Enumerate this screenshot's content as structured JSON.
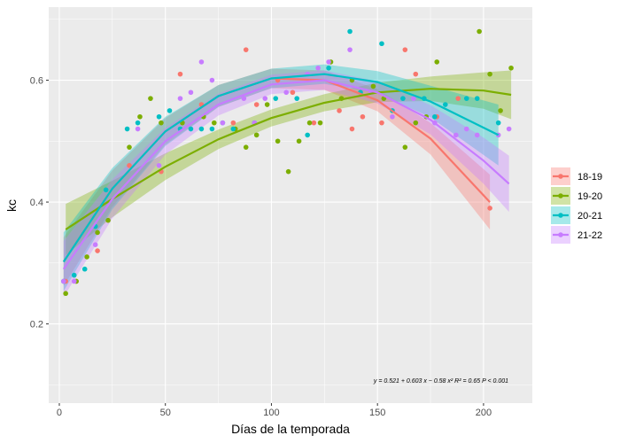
{
  "chart_data": {
    "type": "scatter",
    "title": "",
    "xlabel": "Días de la temporada",
    "ylabel": "kc",
    "xlim": [
      -5,
      223
    ],
    "ylim": [
      0.07,
      0.72
    ],
    "x_ticks": [
      0,
      50,
      100,
      150,
      200
    ],
    "y_ticks": [
      0.2,
      0.4,
      0.6
    ],
    "grid": true,
    "legend_position": "right",
    "annotation": "y = 0.521 + 0.603 x − 0.58 x²   R² = 0.65   P < 0.001",
    "series": [
      {
        "name": "18-19",
        "color": "#F8766D",
        "points": [
          [
            3,
            0.27
          ],
          [
            8,
            0.27
          ],
          [
            18,
            0.32
          ],
          [
            33,
            0.46
          ],
          [
            48,
            0.45
          ],
          [
            57,
            0.61
          ],
          [
            67,
            0.56
          ],
          [
            82,
            0.53
          ],
          [
            88,
            0.65
          ],
          [
            93,
            0.56
          ],
          [
            103,
            0.6
          ],
          [
            110,
            0.58
          ],
          [
            120,
            0.53
          ],
          [
            132,
            0.55
          ],
          [
            138,
            0.52
          ],
          [
            143,
            0.54
          ],
          [
            152,
            0.53
          ],
          [
            163,
            0.65
          ],
          [
            168,
            0.61
          ],
          [
            178,
            0.54
          ],
          [
            188,
            0.57
          ],
          [
            203,
            0.39
          ]
        ],
        "fit": [
          [
            2,
            0.302
          ],
          [
            25,
            0.422
          ],
          [
            50,
            0.516
          ],
          [
            75,
            0.574
          ],
          [
            100,
            0.603
          ],
          [
            125,
            0.6
          ],
          [
            150,
            0.567
          ],
          [
            175,
            0.504
          ],
          [
            203,
            0.4
          ]
        ],
        "band": [
          0.04,
          0.03,
          0.022,
          0.018,
          0.016,
          0.016,
          0.018,
          0.026,
          0.045
        ]
      },
      {
        "name": "19-20",
        "color": "#7CAE00",
        "points": [
          [
            3,
            0.25
          ],
          [
            8,
            0.27
          ],
          [
            13,
            0.31
          ],
          [
            18,
            0.35
          ],
          [
            23,
            0.37
          ],
          [
            33,
            0.49
          ],
          [
            38,
            0.54
          ],
          [
            43,
            0.57
          ],
          [
            48,
            0.53
          ],
          [
            58,
            0.53
          ],
          [
            68,
            0.54
          ],
          [
            73,
            0.53
          ],
          [
            83,
            0.52
          ],
          [
            88,
            0.49
          ],
          [
            93,
            0.51
          ],
          [
            98,
            0.56
          ],
          [
            103,
            0.5
          ],
          [
            108,
            0.45
          ],
          [
            113,
            0.5
          ],
          [
            118,
            0.53
          ],
          [
            123,
            0.53
          ],
          [
            128,
            0.63
          ],
          [
            133,
            0.57
          ],
          [
            138,
            0.6
          ],
          [
            148,
            0.59
          ],
          [
            153,
            0.57
          ],
          [
            163,
            0.49
          ],
          [
            168,
            0.53
          ],
          [
            173,
            0.54
          ],
          [
            178,
            0.63
          ],
          [
            198,
            0.68
          ],
          [
            203,
            0.61
          ],
          [
            208,
            0.55
          ],
          [
            213,
            0.62
          ]
        ],
        "fit": [
          [
            3,
            0.355
          ],
          [
            25,
            0.405
          ],
          [
            50,
            0.458
          ],
          [
            75,
            0.503
          ],
          [
            100,
            0.538
          ],
          [
            125,
            0.563
          ],
          [
            150,
            0.58
          ],
          [
            175,
            0.586
          ],
          [
            200,
            0.583
          ],
          [
            213,
            0.576
          ]
        ],
        "band": [
          0.042,
          0.03,
          0.022,
          0.016,
          0.014,
          0.014,
          0.016,
          0.02,
          0.03,
          0.04
        ]
      },
      {
        "name": "20-21",
        "color": "#00BFC4",
        "points": [
          [
            2,
            0.27
          ],
          [
            7,
            0.28
          ],
          [
            12,
            0.29
          ],
          [
            17,
            0.36
          ],
          [
            22,
            0.42
          ],
          [
            32,
            0.52
          ],
          [
            37,
            0.53
          ],
          [
            47,
            0.54
          ],
          [
            52,
            0.55
          ],
          [
            57,
            0.52
          ],
          [
            62,
            0.52
          ],
          [
            67,
            0.52
          ],
          [
            72,
            0.52
          ],
          [
            77,
            0.53
          ],
          [
            82,
            0.52
          ],
          [
            92,
            0.53
          ],
          [
            102,
            0.57
          ],
          [
            112,
            0.57
          ],
          [
            117,
            0.51
          ],
          [
            127,
            0.62
          ],
          [
            137,
            0.68
          ],
          [
            142,
            0.58
          ],
          [
            152,
            0.66
          ],
          [
            157,
            0.55
          ],
          [
            162,
            0.57
          ],
          [
            172,
            0.57
          ],
          [
            177,
            0.54
          ],
          [
            182,
            0.56
          ],
          [
            192,
            0.57
          ],
          [
            197,
            0.57
          ],
          [
            207,
            0.53
          ]
        ],
        "fit": [
          [
            2,
            0.302
          ],
          [
            25,
            0.422
          ],
          [
            50,
            0.516
          ],
          [
            75,
            0.574
          ],
          [
            100,
            0.603
          ],
          [
            125,
            0.61
          ],
          [
            150,
            0.597
          ],
          [
            175,
            0.565
          ],
          [
            207,
            0.51
          ]
        ],
        "band": [
          0.048,
          0.034,
          0.024,
          0.018,
          0.016,
          0.016,
          0.018,
          0.026,
          0.05
        ]
      },
      {
        "name": "21-22",
        "color": "#C77CFF",
        "points": [
          [
            2,
            0.27
          ],
          [
            7,
            0.27
          ],
          [
            17,
            0.33
          ],
          [
            37,
            0.52
          ],
          [
            47,
            0.46
          ],
          [
            57,
            0.57
          ],
          [
            62,
            0.58
          ],
          [
            67,
            0.63
          ],
          [
            72,
            0.6
          ],
          [
            77,
            0.53
          ],
          [
            87,
            0.57
          ],
          [
            92,
            0.53
          ],
          [
            97,
            0.57
          ],
          [
            107,
            0.58
          ],
          [
            117,
            0.61
          ],
          [
            122,
            0.62
          ],
          [
            127,
            0.63
          ],
          [
            137,
            0.65
          ],
          [
            147,
            0.58
          ],
          [
            157,
            0.54
          ],
          [
            167,
            0.57
          ],
          [
            177,
            0.53
          ],
          [
            187,
            0.51
          ],
          [
            192,
            0.52
          ],
          [
            197,
            0.51
          ],
          [
            207,
            0.51
          ],
          [
            212,
            0.52
          ]
        ],
        "fit": [
          [
            2,
            0.29
          ],
          [
            25,
            0.405
          ],
          [
            50,
            0.5
          ],
          [
            75,
            0.56
          ],
          [
            100,
            0.593
          ],
          [
            125,
            0.6
          ],
          [
            150,
            0.58
          ],
          [
            175,
            0.535
          ],
          [
            200,
            0.468
          ],
          [
            212,
            0.43
          ]
        ],
        "band": [
          0.046,
          0.032,
          0.022,
          0.018,
          0.016,
          0.016,
          0.018,
          0.024,
          0.038,
          0.046
        ]
      }
    ]
  }
}
